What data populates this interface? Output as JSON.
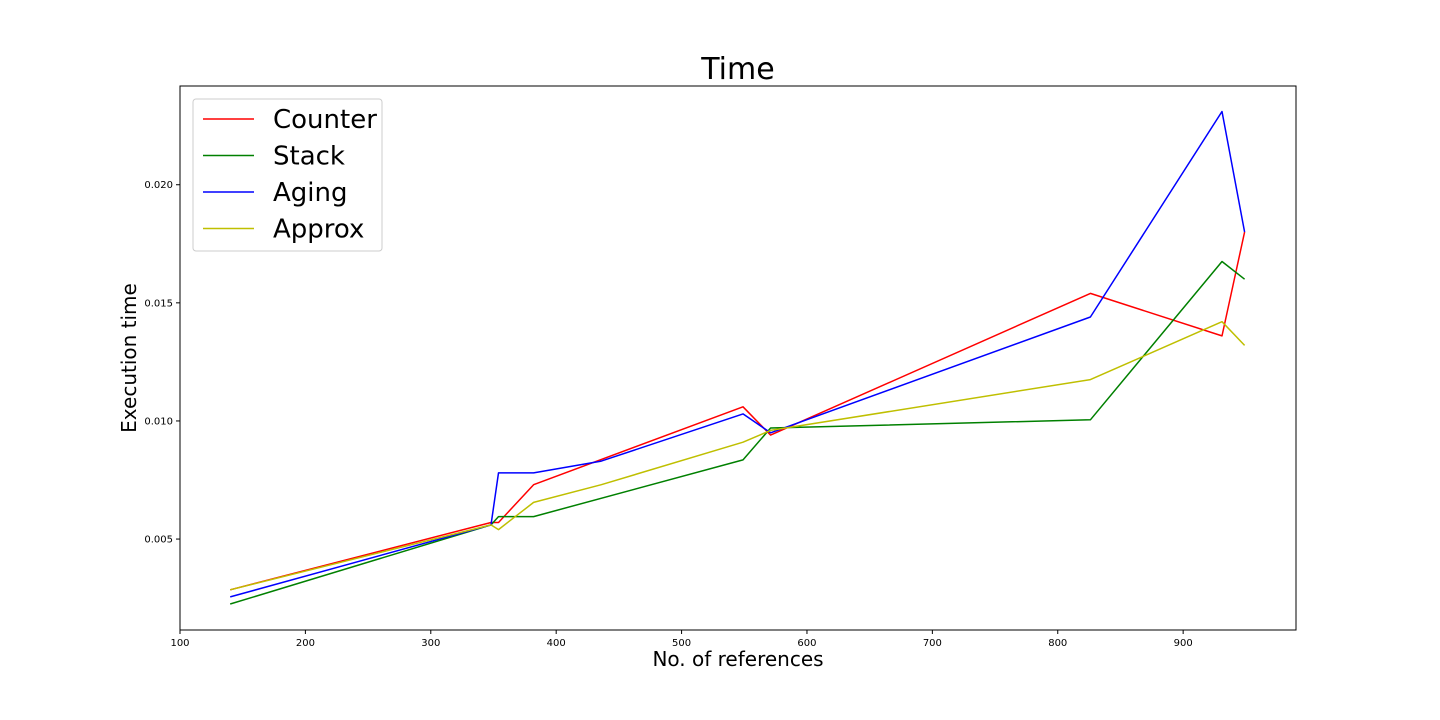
{
  "chart_data": {
    "type": "line",
    "title": "Time",
    "xlabel": "No. of references",
    "ylabel": "Execution time",
    "xlim": [
      100,
      990
    ],
    "ylim": [
      0.00115,
      0.02418
    ],
    "x_ticks": [
      100,
      200,
      300,
      400,
      500,
      600,
      700,
      800,
      900
    ],
    "y_ticks": [
      0.005,
      0.01,
      0.015,
      0.02
    ],
    "y_tick_labels": [
      "0.005",
      "0.010",
      "0.015",
      "0.020"
    ],
    "grid": false,
    "legend_position": "upper-left",
    "series": [
      {
        "name": "Counter",
        "color": "#ff0000",
        "x": [
          140,
          348,
          354,
          382,
          549,
          571,
          826,
          931,
          949
        ],
        "y": [
          0.00285,
          0.0057,
          0.0057,
          0.0073,
          0.0106,
          0.0094,
          0.0154,
          0.0136,
          0.018
        ]
      },
      {
        "name": "Stack",
        "color": "#008000",
        "x": [
          140,
          348,
          354,
          382,
          549,
          571,
          826,
          931,
          949
        ],
        "y": [
          0.00225,
          0.0056,
          0.00595,
          0.00595,
          0.00835,
          0.0097,
          0.01005,
          0.01675,
          0.016
        ]
      },
      {
        "name": "Aging",
        "color": "#0000ff",
        "x": [
          140,
          348,
          354,
          382,
          436,
          549,
          571,
          826,
          931,
          949
        ],
        "y": [
          0.00255,
          0.0056,
          0.0078,
          0.0078,
          0.0083,
          0.0103,
          0.0095,
          0.0144,
          0.0231,
          0.018
        ]
      },
      {
        "name": "Approx",
        "color": "#bfbf00",
        "x": [
          140,
          348,
          354,
          382,
          436,
          549,
          571,
          826,
          931,
          949
        ],
        "y": [
          0.00285,
          0.0056,
          0.0054,
          0.00655,
          0.0073,
          0.0091,
          0.0096,
          0.01175,
          0.0142,
          0.0132
        ]
      }
    ]
  }
}
